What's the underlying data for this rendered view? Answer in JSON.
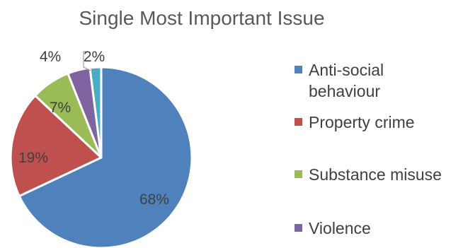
{
  "chart_data": {
    "type": "pie",
    "title": "Single Most Important Issue",
    "categories": [
      "Anti-social behaviour",
      "Property crime",
      "Substance misuse",
      "Violence",
      ""
    ],
    "values": [
      68,
      19,
      7,
      4,
      2
    ],
    "labels": [
      "68%",
      "19%",
      "7%",
      "4%",
      "2%"
    ],
    "colors": [
      "#4F81BD",
      "#C0504D",
      "#9BBB59",
      "#8064A2",
      "#4BACC6"
    ],
    "legend": {
      "position": "right",
      "entries": [
        {
          "lines": [
            "Anti-social",
            "behaviour"
          ],
          "color": "#4F81BD"
        },
        {
          "lines": [
            "Property crime"
          ],
          "color": "#C0504D"
        },
        {
          "lines": [
            "Substance misuse"
          ],
          "color": "#9BBB59"
        },
        {
          "lines": [
            "Violence"
          ],
          "color": "#8064A2"
        }
      ]
    }
  }
}
